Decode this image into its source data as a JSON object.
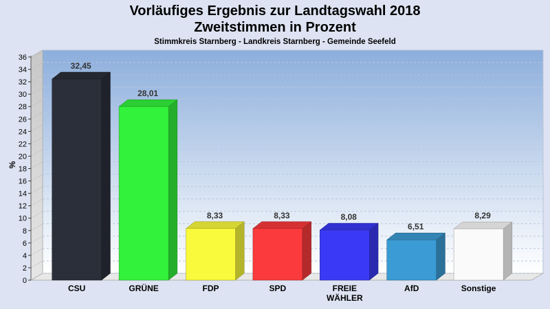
{
  "chart_data": {
    "type": "bar",
    "title": "Vorläufiges Ergebnis zur Landtagswahl 2018",
    "subtitle": "Zweitstimmen in Prozent",
    "subsubtitle": "Stimmkreis Starnberg - Landkreis Starnberg - Gemeinde Seefeld",
    "ylabel": "%",
    "xlabel": "",
    "ylim": [
      0,
      36
    ],
    "yticks": [
      0,
      2,
      4,
      6,
      8,
      10,
      12,
      14,
      16,
      18,
      20,
      22,
      24,
      26,
      28,
      30,
      32,
      34,
      36
    ],
    "grid": true,
    "categories": [
      "CSU",
      "GRÜNE",
      "FDP",
      "SPD",
      "FREIE WÄHLER",
      "AfD",
      "Sonstige"
    ],
    "category_lines": [
      [
        "CSU"
      ],
      [
        "GRÜNE"
      ],
      [
        "FDP"
      ],
      [
        "SPD"
      ],
      [
        "FREIE",
        "WÄHLER"
      ],
      [
        "AfD"
      ],
      [
        "Sonstige"
      ]
    ],
    "values": [
      32.45,
      28.01,
      8.33,
      8.33,
      8.08,
      6.51,
      8.29
    ],
    "value_labels": [
      "32,45",
      "28,01",
      "8,33",
      "8,33",
      "8,08",
      "6,51",
      "8,29"
    ],
    "colors": [
      "#2b2f3a",
      "#33f23c",
      "#fafa3c",
      "#fa3a3c",
      "#3a3af6",
      "#3b9bd4",
      "#fafafa"
    ]
  }
}
